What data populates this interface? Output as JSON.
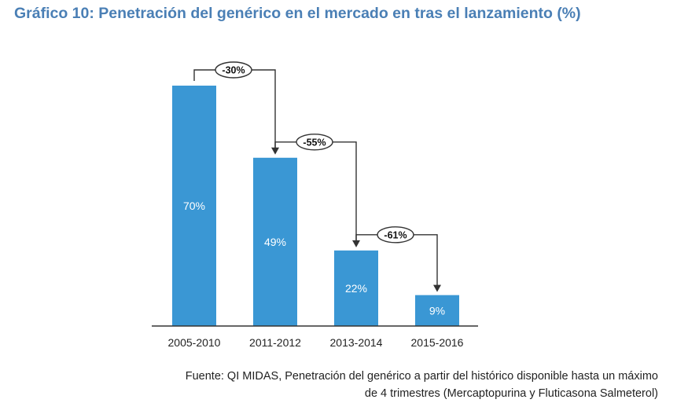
{
  "title": "Gráfico 10: Penetración del genérico en el mercado en tras el lanzamiento (%)",
  "source": {
    "line1": "Fuente: QI MIDAS, Penetración del genérico a partir del histórico disponible hasta un máximo",
    "line2": "de 4 trimestres (Mercaptopurina y Fluticasona Salmeterol)"
  },
  "colors": {
    "title": "#4a7fb5",
    "bar": "#3a97d4",
    "axis": "#333333"
  },
  "chart_data": {
    "type": "bar",
    "title": "Gráfico 10: Penetración del genérico en el mercado en tras el lanzamiento (%)",
    "categories": [
      "2005-2010",
      "2011-2012",
      "2013-2014",
      "2015-2016"
    ],
    "values": [
      70,
      49,
      22,
      9
    ],
    "value_labels": [
      "70%",
      "49%",
      "22%",
      "9%"
    ],
    "xlabel": "",
    "ylabel": "",
    "ylim": [
      0,
      70
    ],
    "grid": false,
    "annotations": [
      {
        "from": 0,
        "to": 1,
        "label": "-30%"
      },
      {
        "from": 1,
        "to": 2,
        "label": "-55%"
      },
      {
        "from": 2,
        "to": 3,
        "label": "-61%"
      }
    ]
  }
}
